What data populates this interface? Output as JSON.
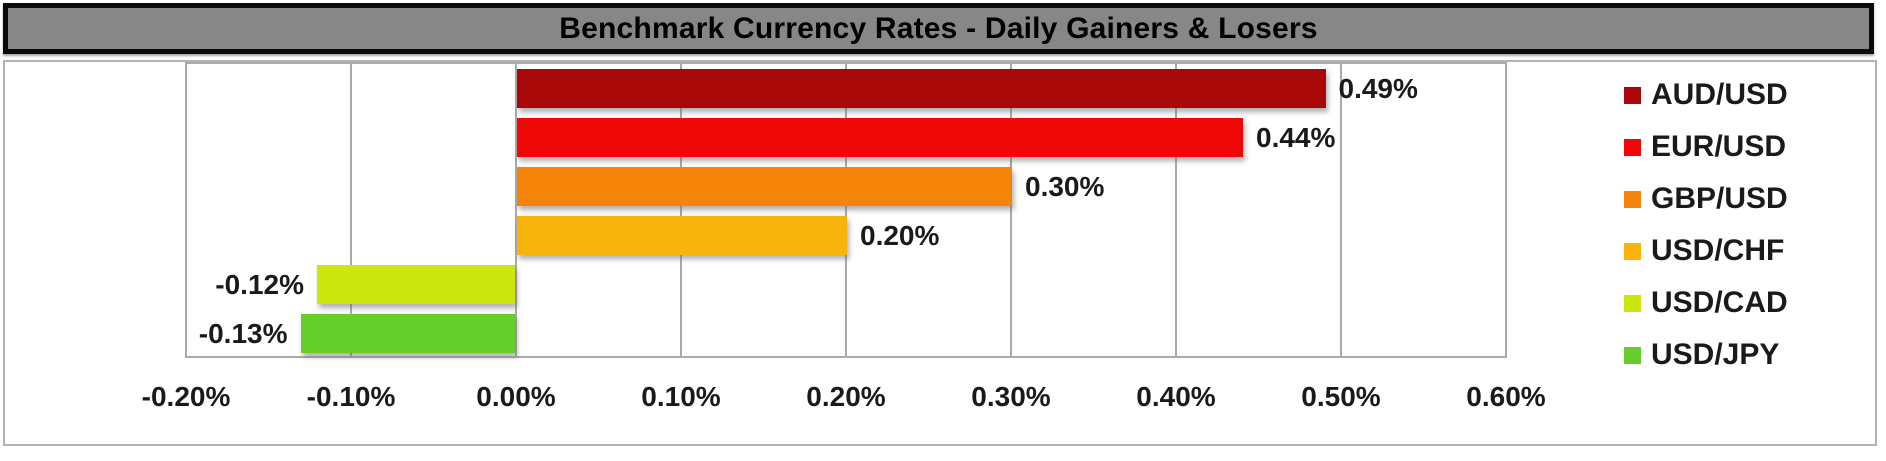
{
  "chart_data": {
    "type": "bar",
    "orientation": "horizontal",
    "title": "Benchmark Currency Rates - Daily Gainers & Losers",
    "series": [
      {
        "name": "AUD/USD",
        "value": 0.49,
        "label": "0.49%",
        "color": "#a90808"
      },
      {
        "name": "EUR/USD",
        "value": 0.44,
        "label": "0.44%",
        "color": "#f00707"
      },
      {
        "name": "GBP/USD",
        "value": 0.3,
        "label": "0.30%",
        "color": "#f68408"
      },
      {
        "name": "USD/CHF",
        "value": 0.2,
        "label": "0.20%",
        "color": "#f9b40b"
      },
      {
        "name": "USD/CAD",
        "value": -0.12,
        "label": "-0.12%",
        "color": "#cce70d"
      },
      {
        "name": "USD/JPY",
        "value": -0.13,
        "label": "-0.13%",
        "color": "#66ce2b"
      }
    ],
    "x_axis": {
      "min": -0.2,
      "max": 0.6,
      "step": 0.1,
      "tick_labels": [
        "-0.20%",
        "-0.10%",
        "0.00%",
        "0.10%",
        "0.20%",
        "0.30%",
        "0.40%",
        "0.50%",
        "0.60%"
      ],
      "format": "percent"
    },
    "legend": {
      "position": "right",
      "entries": [
        "AUD/USD",
        "EUR/USD",
        "GBP/USD",
        "USD/CHF",
        "USD/CAD",
        "USD/JPY"
      ]
    },
    "grid": "vertical-only",
    "data_label_position": "outside-end",
    "colors": {
      "title_bar_bg": "#878787",
      "title_bar_border": "#0b0b0b",
      "title_text": "#000000",
      "plot_border": "#a9a9a9",
      "gridline": "#a9a9a9",
      "label_text": "#1a1a1a",
      "background": "#ffffff"
    }
  }
}
